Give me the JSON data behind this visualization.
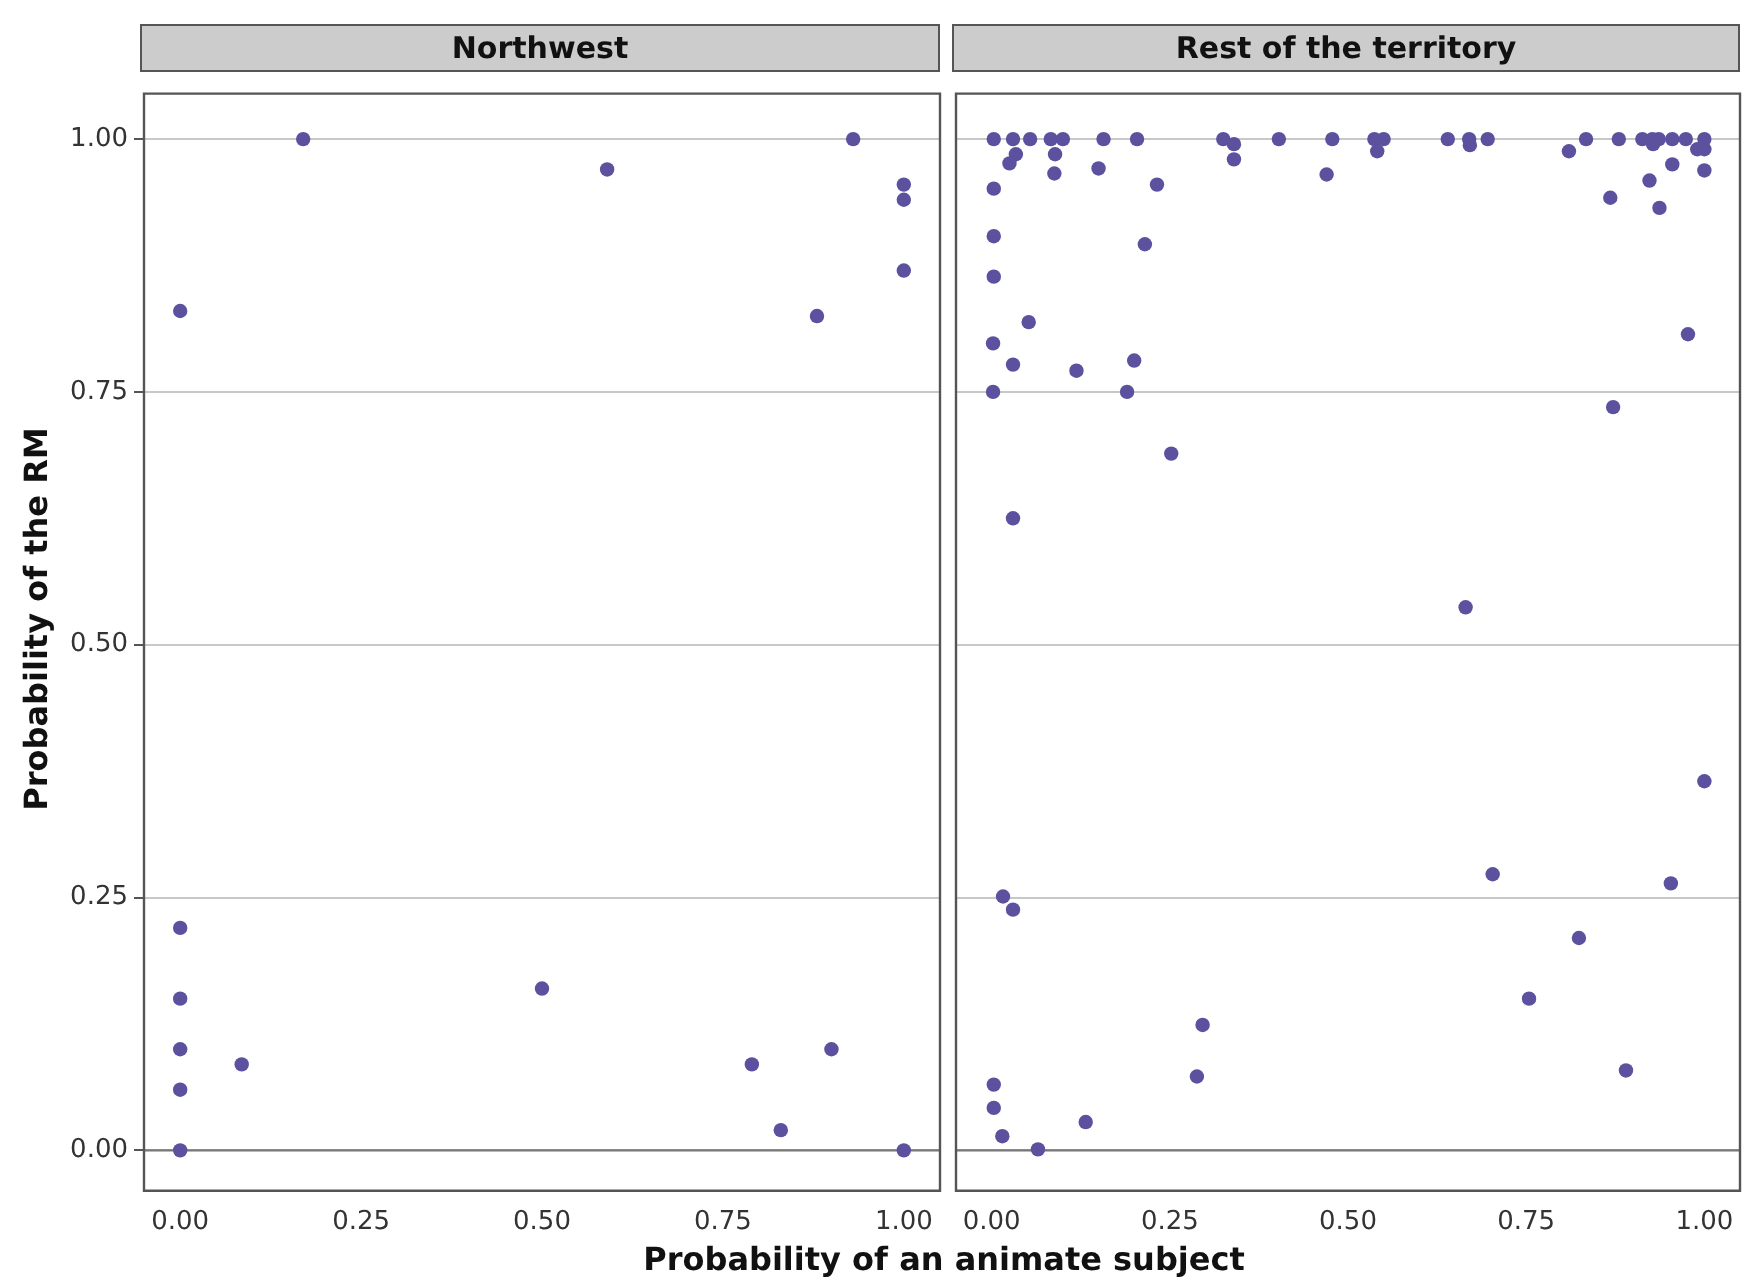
{
  "chart_data": [
    {
      "type": "scatter",
      "title": "Northwest",
      "ylabel": "Probability of the RM",
      "xlabel": "Probability of an animate subject",
      "grid": "y",
      "marker": "circle",
      "legend": false,
      "xlim": [
        -0.05,
        1.05
      ],
      "ylim": [
        -0.04,
        1.045
      ],
      "xticks": [
        {
          "value": 0,
          "label": "0.00"
        },
        {
          "value": 0.25,
          "label": "0.25"
        },
        {
          "value": 0.5,
          "label": "0.50"
        },
        {
          "value": 0.75,
          "label": "0.75"
        },
        {
          "value": 1,
          "label": "1.00"
        }
      ],
      "yticks": [
        {
          "value": 0,
          "label": "0.00"
        },
        {
          "value": 0.25,
          "label": "0.25"
        },
        {
          "value": 0.5,
          "label": "0.50"
        },
        {
          "value": 0.75,
          "label": "0.75"
        },
        {
          "value": 1,
          "label": "1.00"
        }
      ],
      "ref_lines": [
        {
          "axis": "y",
          "value": 0,
          "color": "#777777"
        }
      ],
      "series": [
        {
          "color": "#5b519e",
          "x": [
            0,
            0.17,
            0.59,
            0.93,
            1.0,
            1.0,
            1.0,
            0.88,
            0,
            0,
            0,
            0,
            0,
            0.085,
            0.5,
            0.79,
            0.83,
            0.9,
            1.0
          ],
          "values": [
            0.83,
            1.0,
            0.97,
            1.0,
            0.955,
            0.94,
            0.87,
            0.825,
            0.22,
            0.15,
            0.1,
            0.06,
            0,
            0.085,
            0.16,
            0.085,
            0.02,
            0.1,
            0
          ]
        }
      ]
    },
    {
      "type": "scatter",
      "title": "Rest of the territory",
      "grid": "y",
      "marker": "circle",
      "legend": false,
      "tick_labels": "x",
      "xlim": [
        -0.05,
        1.05
      ],
      "ylim": [
        -0.04,
        1.045
      ],
      "xticks": [
        {
          "value": 0,
          "label": "0.00"
        },
        {
          "value": 0.25,
          "label": "0.25"
        },
        {
          "value": 0.5,
          "label": "0.50"
        },
        {
          "value": 0.75,
          "label": "0.75"
        },
        {
          "value": 1,
          "label": "1.00"
        }
      ],
      "yticks": [
        {
          "value": 0,
          "label": null
        },
        {
          "value": 0.25,
          "label": null
        },
        {
          "value": 0.5,
          "label": null
        },
        {
          "value": 0.75,
          "label": null
        },
        {
          "value": 1,
          "label": null
        }
      ],
      "ref_lines": [
        {
          "axis": "y",
          "value": 0,
          "color": "#777777"
        }
      ],
      "series": [
        {
          "color": "#5b519e",
          "x": [
            0.003,
            0.03,
            0.054,
            0.083,
            0.1,
            0.157,
            0.204,
            0.325,
            0.403,
            0.478,
            0.537,
            0.55,
            0.64,
            0.67,
            0.696,
            0.834,
            0.88,
            0.913,
            0.927,
            0.936,
            0.955,
            0.974,
            1.0,
            0.034,
            0.025,
            0.089,
            0.088,
            0.15,
            0.232,
            0.003,
            0.34,
            0.34,
            0.47,
            0.541,
            0.671,
            0.81,
            0.928,
            0.99,
            1.0,
            0.955,
            1.0,
            0.923,
            0.868,
            0.937,
            0.003,
            0.215,
            0.003,
            0.052,
            0.977,
            0.002,
            0.03,
            0.119,
            0.2,
            0.002,
            0.19,
            0.872,
            0.252,
            0.03,
            0.665,
            1.0,
            0.703,
            0.953,
            0.016,
            0.03,
            0.824,
            0.754,
            0.296,
            0.288,
            0.89,
            0.003,
            0.003,
            0.132,
            0.015,
            0.065
          ],
          "values": [
            1,
            1,
            1,
            1,
            1,
            1,
            1,
            1,
            1,
            1,
            1,
            1,
            1,
            1,
            1,
            1,
            1,
            1,
            1,
            1,
            1,
            1,
            1,
            0.985,
            0.976,
            0.985,
            0.966,
            0.971,
            0.955,
            0.951,
            0.995,
            0.98,
            0.965,
            0.988,
            0.994,
            0.988,
            0.995,
            0.99,
            0.99,
            0.975,
            0.969,
            0.959,
            0.942,
            0.932,
            0.904,
            0.896,
            0.864,
            0.819,
            0.807,
            0.798,
            0.777,
            0.771,
            0.781,
            0.75,
            0.75,
            0.735,
            0.689,
            0.625,
            0.537,
            0.365,
            0.273,
            0.264,
            0.251,
            0.238,
            0.21,
            0.15,
            0.124,
            0.073,
            0.079,
            0.065,
            0.042,
            0.028,
            0.014,
            0.001
          ]
        }
      ]
    }
  ]
}
